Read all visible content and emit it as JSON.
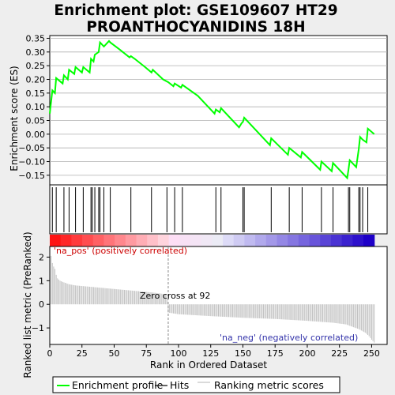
{
  "title_line1": "Enrichment plot: GSE109607 HT29",
  "title_line2": "PROANTHOCYANIDINS 18H",
  "colors": {
    "enrichment": "#00ff00",
    "hits": "#000000",
    "ranking": "#c0c0c0",
    "pos_label": "#cc0000",
    "neg_label": "#3333aa",
    "background": "#eeeeee",
    "plot_bg": "#ffffff"
  },
  "annotations": {
    "pos": "'na_pos' (positively correlated)",
    "neg": "'na_neg' (negatively correlated)",
    "zero_cross": "Zero cross at 92"
  },
  "legend": {
    "items": [
      {
        "label": "Enrichment profile"
      },
      {
        "label": "Hits"
      },
      {
        "label": "Ranking metric scores"
      }
    ]
  },
  "chart_data": [
    {
      "type": "line",
      "name": "enrichment-profile",
      "ylabel": "Enrichment score (ES)",
      "xlim": [
        0,
        262
      ],
      "ylim": [
        -0.185,
        0.36
      ],
      "yticks": [
        -0.15,
        -0.1,
        -0.05,
        0.0,
        0.05,
        0.1,
        0.15,
        0.2,
        0.25,
        0.3,
        0.35
      ],
      "ytick_labels": [
        "−0.15",
        "−0.10",
        "−0.05",
        "0.00",
        "0.05",
        "0.10",
        "0.15",
        "0.20",
        "0.25",
        "0.30",
        "0.35"
      ],
      "grid": true,
      "x": [
        0,
        2,
        4,
        5,
        10,
        11,
        14,
        15,
        19,
        20,
        25,
        26,
        31,
        32,
        34,
        35,
        38,
        39,
        41,
        42,
        46,
        47,
        54,
        62,
        63,
        66,
        74,
        79,
        80,
        88,
        92,
        96,
        97,
        102,
        103,
        115,
        128,
        129,
        132,
        133,
        147,
        149,
        150,
        151,
        171,
        172,
        185,
        186,
        195,
        196,
        210,
        211,
        219,
        220,
        231,
        232,
        233,
        238,
        240,
        241,
        243,
        246,
        247,
        252
      ],
      "y": [
        0.075,
        0.16,
        0.15,
        0.205,
        0.185,
        0.215,
        0.2,
        0.235,
        0.22,
        0.245,
        0.225,
        0.245,
        0.225,
        0.275,
        0.265,
        0.29,
        0.3,
        0.335,
        0.325,
        0.32,
        0.34,
        0.335,
        0.31,
        0.28,
        0.285,
        0.275,
        0.245,
        0.225,
        0.235,
        0.2,
        0.19,
        0.175,
        0.185,
        0.17,
        0.18,
        0.14,
        0.075,
        0.09,
        0.08,
        0.095,
        0.025,
        0.04,
        0.045,
        0.06,
        -0.04,
        -0.015,
        -0.075,
        -0.05,
        -0.085,
        -0.065,
        -0.13,
        -0.1,
        -0.135,
        -0.105,
        -0.16,
        -0.13,
        -0.095,
        -0.12,
        -0.055,
        -0.01,
        -0.02,
        -0.03,
        0.02,
        0.0
      ]
    },
    {
      "type": "scatter",
      "name": "hits",
      "x": [
        2,
        5,
        11,
        15,
        20,
        26,
        32,
        33,
        35,
        38,
        39,
        42,
        47,
        63,
        79,
        91,
        97,
        103,
        129,
        133,
        150,
        151,
        172,
        186,
        196,
        211,
        220,
        232,
        233,
        240,
        241,
        243,
        247
      ]
    },
    {
      "type": "area",
      "name": "ranking-metric",
      "xlabel": "Rank in Ordered Dataset",
      "ylabel": "Ranked list metric (PreRanked)",
      "xlim": [
        0,
        262
      ],
      "ylim": [
        -1.7,
        2.45
      ],
      "yticks": [
        -1,
        0,
        1,
        2
      ],
      "ytick_labels": [
        "−1",
        "0",
        "1",
        "2"
      ],
      "xticks": [
        0,
        25,
        50,
        75,
        100,
        125,
        150,
        175,
        200,
        225,
        250
      ],
      "zero_cross": 92,
      "x": [
        1,
        2,
        3,
        4,
        5,
        6,
        8,
        10,
        15,
        20,
        30,
        40,
        60,
        80,
        91,
        92,
        100,
        125,
        150,
        175,
        200,
        220,
        230,
        235,
        240,
        245,
        248,
        250,
        252
      ],
      "y": [
        2.05,
        1.75,
        1.6,
        1.5,
        1.25,
        1.1,
        1.0,
        0.95,
        0.85,
        0.8,
        0.75,
        0.7,
        0.6,
        0.5,
        0.42,
        -0.35,
        -0.42,
        -0.5,
        -0.57,
        -0.62,
        -0.7,
        -0.78,
        -0.85,
        -0.95,
        -1.05,
        -1.2,
        -1.35,
        -1.5,
        -1.62
      ]
    }
  ]
}
